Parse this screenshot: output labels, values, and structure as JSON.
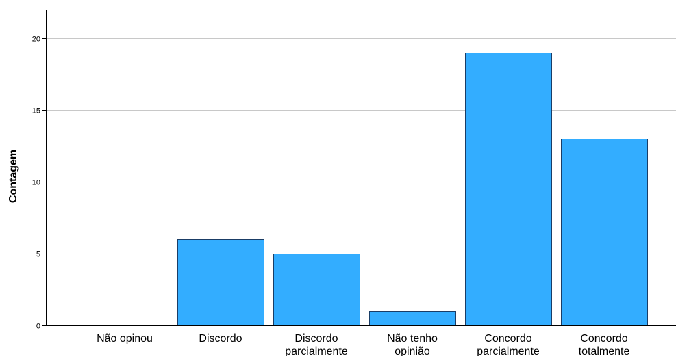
{
  "chart_data": {
    "type": "bar",
    "title": "",
    "xlabel": "",
    "ylabel": "Contagem",
    "categories": [
      [
        "Não opinou"
      ],
      [
        "Discordo"
      ],
      [
        "Discordo",
        "parcialmente"
      ],
      [
        "Não tenho",
        "opinião"
      ],
      [
        "Concordo",
        "parcialmente"
      ],
      [
        "Concordo",
        "totalmente"
      ]
    ],
    "values": [
      0,
      6,
      5,
      1,
      19,
      13
    ],
    "ylim": [
      0,
      22
    ],
    "yticks": [
      0,
      5,
      10,
      15,
      20
    ],
    "grid": true,
    "legend": "none",
    "colors": {
      "bar_fill": "#33adff",
      "bar_stroke": "#1a3d66",
      "grid": "#c8c8c8",
      "axis": "#000000"
    }
  }
}
